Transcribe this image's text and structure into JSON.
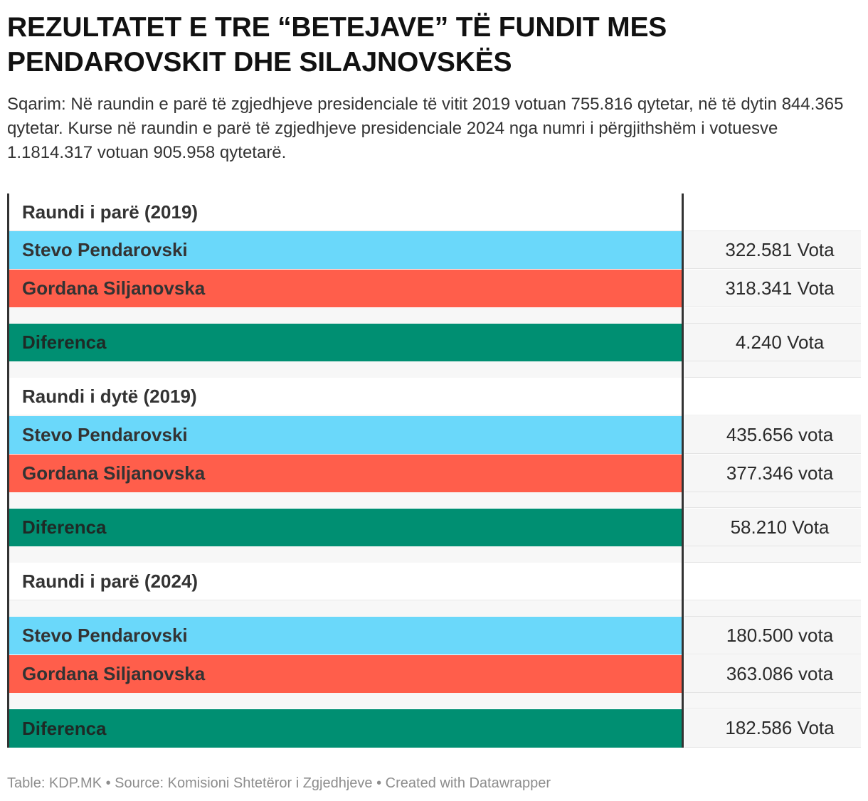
{
  "title": {
    "line1": "REZULTATET E TRE “BETEJAVE” TË FUNDIT MES",
    "line2": "PENDAROVSKIT DHE SILAJNOVSKËS"
  },
  "subtitle": "Sqarim: Në raundin e parë të zgjedhjeve presidenciale të vitit 2019 votuan 755.816 qytetar, në të dytin 844.365 qytetar. Kurse në raundin e parë të zgjedhjeve presidenciale 2024 nga numri i përgjithshëm i votuesve 1.1814.317 votuan 905.958 qytetarë.",
  "colors": {
    "pendarovski": "#6ad8fa",
    "siljanovska": "#ff5e4b",
    "diferenca": "#008f72"
  },
  "chart_data": {
    "type": "table",
    "title": "REZULTATET E TRE “BETEJAVE” TË FUNDIT MES PENDAROVSKIT DHE SILAJNOVSKËS",
    "sections": [
      {
        "heading": "Raundi i parë (2019)",
        "rows": [
          {
            "label": "Stevo Pendarovski",
            "value": "322.581 Vota"
          },
          {
            "label": "Gordana Siljanovska",
            "value": "318.341 Vota"
          },
          {
            "label": "Diferenca",
            "value": "4.240 Vota"
          }
        ]
      },
      {
        "heading": "Raundi i dytë (2019)",
        "rows": [
          {
            "label": "Stevo Pendarovski",
            "value": "435.656 vota"
          },
          {
            "label": "Gordana Siljanovska",
            "value": "377.346 vota"
          },
          {
            "label": "Diferenca",
            "value": "58.210 Vota"
          }
        ]
      },
      {
        "heading": "Raundi i parë (2024)",
        "rows": [
          {
            "label": "Stevo Pendarovski",
            "value": "180.500 vota"
          },
          {
            "label": "Gordana Siljanovska",
            "value": "363.086 vota"
          },
          {
            "label": "Diferenca",
            "value": "182.586 Vota"
          }
        ]
      }
    ]
  },
  "footer": "Table: KDP.MK • Source: Komisioni Shtetëror i Zgjedhjeve • Created with Datawrapper"
}
